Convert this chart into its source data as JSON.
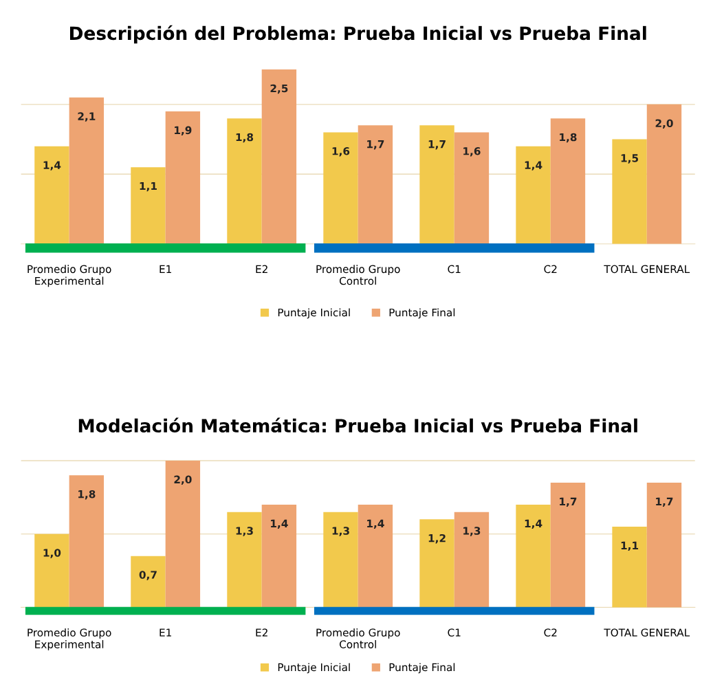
{
  "chart_data": [
    {
      "type": "bar",
      "title": "Descripción del Problema: Prueba Inicial vs Prueba Final",
      "categories": [
        "Promedio Grupo Experimental",
        "E1",
        "E2",
        "Promedio Grupo Control",
        "C1",
        "C2",
        "TOTAL GENERAL"
      ],
      "series": [
        {
          "name": "Puntaje Inicial",
          "color": "#f2c94c",
          "values": [
            1.4,
            1.1,
            1.8,
            1.6,
            1.7,
            1.4,
            1.5
          ],
          "value_labels": [
            "1,4",
            "1,1",
            "1,8",
            "1,6",
            "1,7",
            "1,4",
            "1,5"
          ]
        },
        {
          "name": "Puntaje Final",
          "color": "#eea472",
          "values": [
            2.1,
            1.9,
            2.5,
            1.7,
            1.6,
            1.8,
            2.0
          ],
          "value_labels": [
            "2,1",
            "1,9",
            "2,5",
            "1,7",
            "1,6",
            "1,8",
            "2,0"
          ]
        }
      ],
      "tick_labels": "x",
      "legend": "bottom",
      "ref_lines": [
        {
          "axis": "y",
          "value": 1,
          "color": "#eadbb8"
        },
        {
          "axis": "y",
          "value": 2,
          "color": "#eadbb8"
        }
      ]
    },
    {
      "type": "bar",
      "title": "Modelación Matemática: Prueba Inicial vs Prueba Final",
      "categories": [
        "Promedio Grupo Experimental",
        "E1",
        "E2",
        "Promedio Grupo Control",
        "C1",
        "C2",
        "TOTAL GENERAL"
      ],
      "series": [
        {
          "name": "Puntaje Inicial",
          "color": "#f2c94c",
          "values": [
            1.0,
            0.7,
            1.3,
            1.3,
            1.2,
            1.4,
            1.1
          ],
          "value_labels": [
            "1,0",
            "0,7",
            "1,3",
            "1,3",
            "1,2",
            "1,4",
            "1,1"
          ]
        },
        {
          "name": "Puntaje Final",
          "color": "#eea472",
          "values": [
            1.8,
            2.0,
            1.4,
            1.4,
            1.3,
            1.7,
            1.7
          ],
          "value_labels": [
            "1,8",
            "2,0",
            "1,4",
            "1,4",
            "1,3",
            "1,7",
            "1,7"
          ]
        }
      ],
      "tick_labels": "x",
      "legend": "bottom",
      "ref_lines": [
        {
          "axis": "y",
          "value": 1,
          "color": "#eadbb8"
        },
        {
          "axis": "y",
          "value": 2,
          "color": "#eadbb8"
        }
      ]
    }
  ]
}
